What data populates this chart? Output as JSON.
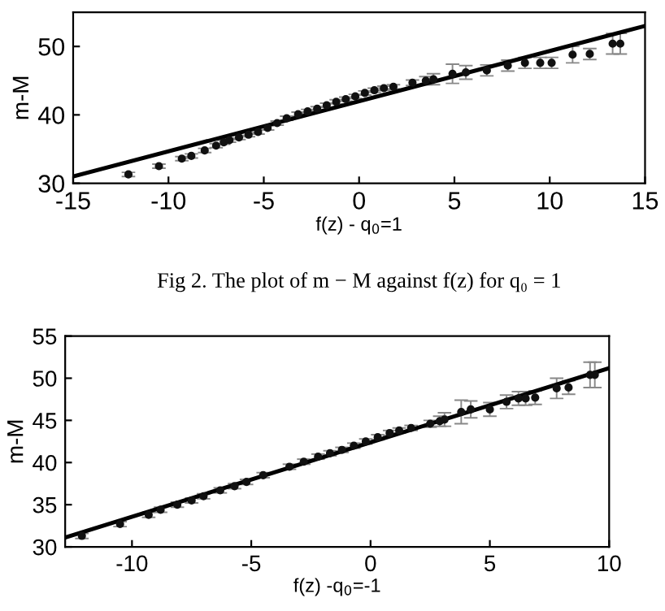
{
  "chart_data": [
    {
      "type": "scatter",
      "xlabel": "f(z) - q$_{0}$=1",
      "ylabel": "m-M",
      "xlim": [
        -15,
        15
      ],
      "ylim": [
        30,
        55
      ],
      "xticks": [
        -15,
        -10,
        -5,
        0,
        5,
        10,
        15
      ],
      "yticks": [
        30,
        40,
        50
      ],
      "grid": false,
      "legend": false,
      "annotations": [
        "Fig 2. The plot of m − M against f(z) for q₀ = 1"
      ],
      "series": [
        {
          "marker": "circle",
          "color": "#111111",
          "x": [
            -12.1,
            -10.5,
            -9.3,
            -8.8,
            -8.1,
            -7.5,
            -7.1,
            -6.8,
            -6.3,
            -5.8,
            -5.3,
            -4.8,
            -4.3,
            -3.8,
            -3.2,
            -2.7,
            -2.2,
            -1.7,
            -1.2,
            -0.7,
            -0.2,
            0.3,
            0.8,
            1.3,
            1.8,
            2.8,
            3.5,
            3.9,
            4.9,
            5.6,
            6.7,
            7.8,
            8.7,
            9.5,
            10.1,
            11.2,
            12.1,
            13.3,
            13.7
          ],
          "values": [
            31.3,
            32.5,
            33.6,
            34.0,
            34.8,
            35.5,
            36.0,
            36.3,
            36.7,
            37.1,
            37.5,
            38.1,
            38.8,
            39.5,
            40.1,
            40.5,
            40.9,
            41.4,
            41.9,
            42.3,
            42.7,
            43.2,
            43.6,
            43.9,
            44.1,
            44.7,
            45.0,
            45.2,
            46.0,
            46.2,
            46.5,
            47.2,
            47.6,
            47.6,
            47.6,
            48.8,
            48.9,
            50.4,
            50.4
          ],
          "errors": [
            0.3,
            0.3,
            0.3,
            0.3,
            0.3,
            0.3,
            0.3,
            0.3,
            0.3,
            0.3,
            0.3,
            0.3,
            0.3,
            0.3,
            0.3,
            0.3,
            0.3,
            0.3,
            0.3,
            0.3,
            0.3,
            0.3,
            0.3,
            0.3,
            0.3,
            0.4,
            0.6,
            0.8,
            1.4,
            1.0,
            0.8,
            0.8,
            0.8,
            0.8,
            0.8,
            1.2,
            0.8,
            1.5,
            1.5
          ]
        },
        {
          "type": "line",
          "color": "#000000",
          "x": [
            -15,
            15
          ],
          "values": [
            31.0,
            53.0
          ]
        }
      ]
    },
    {
      "type": "scatter",
      "xlabel": "f(z) -q$_{0}$=-1",
      "ylabel": "m-M",
      "xlim": [
        -12.8,
        10
      ],
      "ylim": [
        30,
        55
      ],
      "xticks": [
        -10,
        -5,
        0,
        5,
        10
      ],
      "yticks": [
        30,
        35,
        40,
        45,
        50,
        55
      ],
      "grid": false,
      "legend": false,
      "series": [
        {
          "marker": "circle",
          "color": "#111111",
          "x": [
            -12.1,
            -10.5,
            -9.3,
            -8.8,
            -8.1,
            -7.5,
            -7.0,
            -6.3,
            -5.7,
            -5.2,
            -4.5,
            -3.4,
            -2.8,
            -2.2,
            -1.7,
            -1.2,
            -0.7,
            -0.2,
            0.3,
            0.8,
            1.2,
            1.7,
            2.5,
            2.9,
            3.1,
            3.8,
            4.2,
            5.0,
            5.7,
            6.2,
            6.5,
            6.9,
            7.8,
            8.3,
            9.2,
            9.4
          ],
          "values": [
            31.3,
            32.7,
            33.8,
            34.4,
            35.0,
            35.5,
            36.0,
            36.7,
            37.2,
            37.7,
            38.5,
            39.5,
            40.1,
            40.7,
            41.1,
            41.5,
            42.0,
            42.5,
            43.0,
            43.5,
            43.8,
            44.1,
            44.6,
            44.9,
            45.1,
            46.0,
            46.3,
            46.3,
            47.2,
            47.6,
            47.6,
            47.7,
            48.8,
            48.9,
            50.4,
            50.4
          ],
          "errors": [
            0.3,
            0.3,
            0.3,
            0.3,
            0.3,
            0.3,
            0.3,
            0.3,
            0.3,
            0.3,
            0.3,
            0.3,
            0.3,
            0.3,
            0.3,
            0.3,
            0.3,
            0.3,
            0.3,
            0.3,
            0.3,
            0.3,
            0.4,
            0.6,
            0.8,
            1.4,
            1.0,
            0.8,
            0.8,
            0.8,
            0.8,
            0.8,
            1.2,
            0.8,
            1.5,
            1.5
          ]
        },
        {
          "type": "line",
          "color": "#000000",
          "x": [
            -12.8,
            10
          ],
          "values": [
            31.1,
            51.2
          ]
        }
      ]
    }
  ]
}
